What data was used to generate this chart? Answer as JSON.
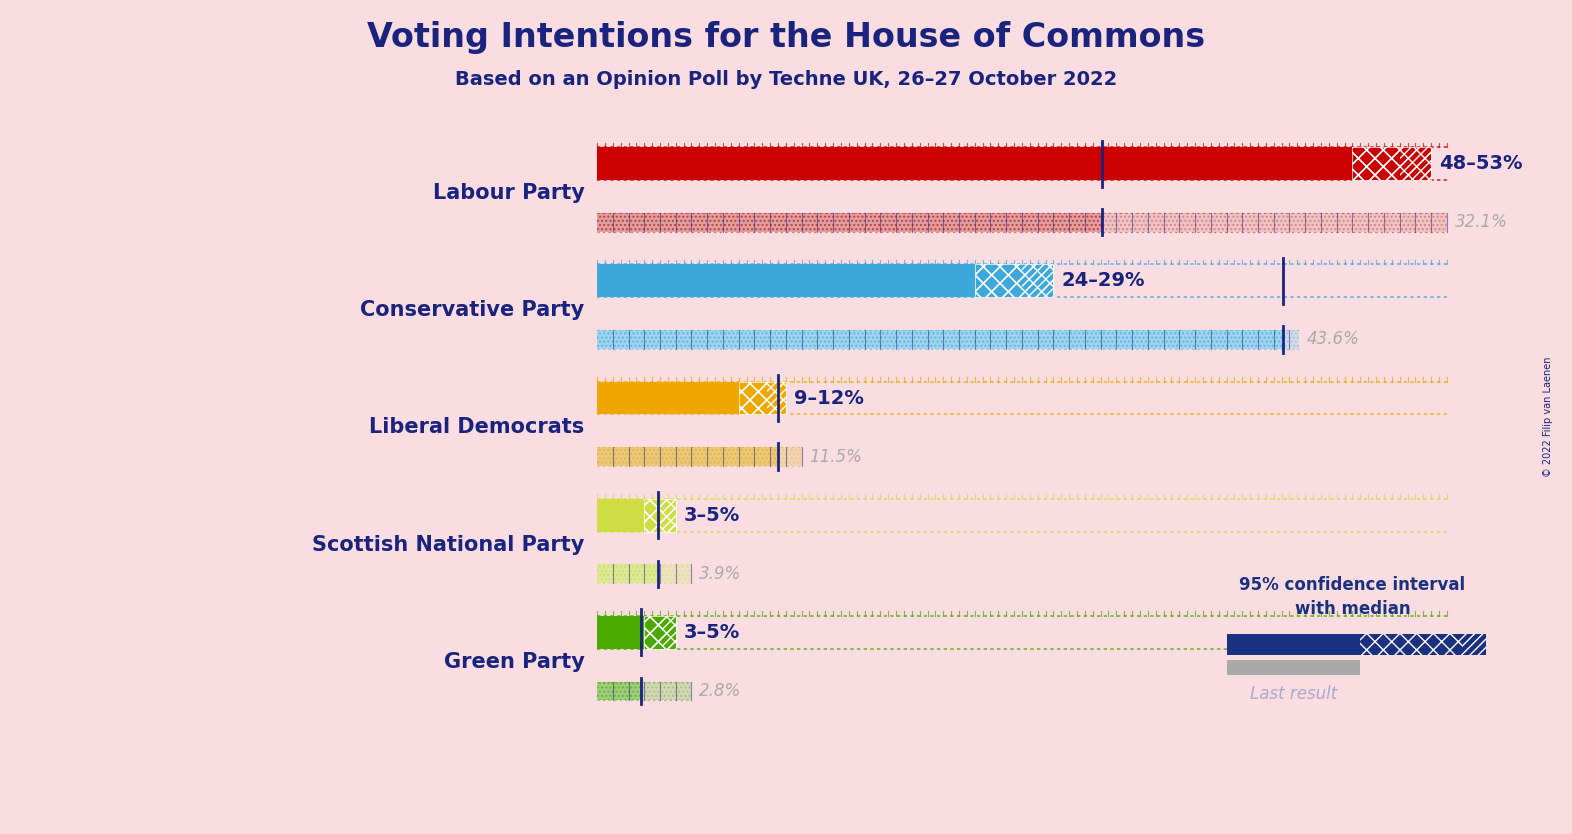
{
  "title": "Voting Intentions for the House of Commons",
  "subtitle": "Based on an Opinion Poll by Techne UK, 26–27 October 2022",
  "copyright": "© 2022 Filip van Laenen",
  "background_color": "#f9dde0",
  "title_color": "#1a237e",
  "subtitle_color": "#1a237e",
  "parties": [
    "Labour Party",
    "Conservative Party",
    "Liberal Democrats",
    "Scottish National Party",
    "Green Party"
  ],
  "ci_low": [
    48,
    24,
    9,
    3,
    3
  ],
  "ci_high": [
    53,
    29,
    12,
    5,
    5
  ],
  "last_result": [
    32.1,
    43.6,
    11.5,
    3.9,
    2.8
  ],
  "ci_labels": [
    "48–53%",
    "24–29%",
    "9–12%",
    "3–5%",
    "3–5%"
  ],
  "lr_labels": [
    "32.1%",
    "43.6%",
    "11.5%",
    "3.9%",
    "2.8%"
  ],
  "party_colors": [
    "#cc0000",
    "#3da8dc",
    "#f0a800",
    "#cedd44",
    "#4aaa00"
  ],
  "party_colors_light": [
    "#dda0a0",
    "#a0d4ee",
    "#e8c880",
    "#dde89a",
    "#a0cc80"
  ],
  "xmax": 56,
  "party_label_color": "#1a237e",
  "ci_label_color": "#1a237e",
  "lr_label_color": "#aaaaaa",
  "legend_ci_color": "#1a3080",
  "legend_lr_color": "#aaaaaa",
  "tick_color": "#1a237e"
}
